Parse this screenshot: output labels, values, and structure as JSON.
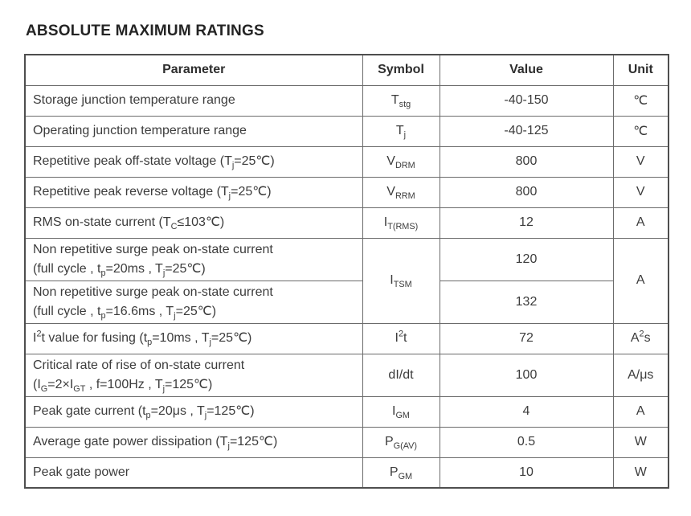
{
  "title": "ABSOLUTE MAXIMUM RATINGS",
  "table": {
    "headers": [
      "Parameter",
      "Symbol",
      "Value",
      "Unit"
    ],
    "rows": [
      {
        "param": "Storage junction temperature range",
        "symbol": "T_{stg}",
        "value": "-40-150",
        "unit": "℃"
      },
      {
        "param": "Operating junction temperature range",
        "symbol": "T_{j}",
        "value": "-40-125",
        "unit": "℃"
      },
      {
        "param": "Repetitive peak off-state voltage (T_{j}=25℃)",
        "symbol": "V_{DRM}",
        "value": "800",
        "unit": "V"
      },
      {
        "param": "Repetitive peak reverse voltage (T_{j}=25℃)",
        "symbol": "V_{RRM}",
        "value": "800",
        "unit": "V"
      },
      {
        "param": "RMS on-state current (T_{C}≤103℃)",
        "symbol": "I_{T(RMS)}",
        "value": "12",
        "unit": "A"
      },
      {
        "param": "Non repetitive surge peak on-state current\n(full cycle , t_{p}=20ms , T_{j}=25℃)",
        "symbol": "I_{TSM}",
        "value": "120",
        "unit": "A"
      },
      {
        "param": "Non repetitive surge peak on-state current\n(full cycle , t_{p}=16.6ms , T_{j}=25℃)",
        "value": "132"
      },
      {
        "param": "I^{2}t value for fusing (t_{p}=10ms , T_{j}=25℃)",
        "symbol": "I^{2}t",
        "value": "72",
        "unit": "A^{2}s"
      },
      {
        "param": "Critical rate of rise of on-state current\n(I_{G}=2×I_{GT} , f=100Hz , T_{j}=125℃)",
        "symbol": "dI/dt",
        "value": "100",
        "unit": "A/μs"
      },
      {
        "param": "Peak gate current (t_{p}=20μs , T_{j}=125℃)",
        "symbol": "I_{GM}",
        "value": "4",
        "unit": "A"
      },
      {
        "param": "Average gate power dissipation (T_{j}=125℃)",
        "symbol": "P_{G(AV)}",
        "value": "0.5",
        "unit": "W"
      },
      {
        "param": "Peak gate power",
        "symbol": "P_{GM}",
        "value": "10",
        "unit": "W"
      }
    ]
  }
}
